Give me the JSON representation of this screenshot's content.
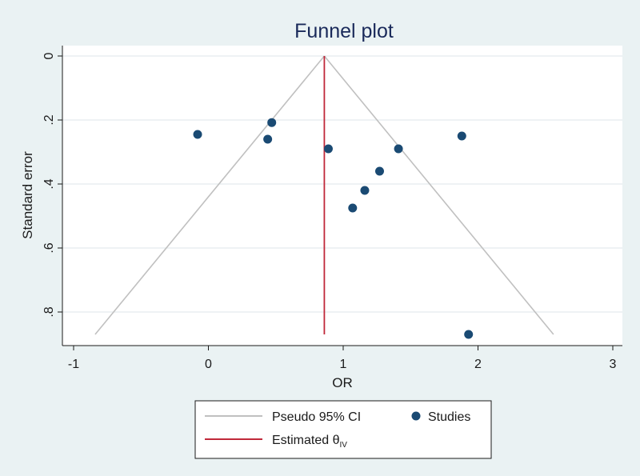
{
  "chart_data": {
    "type": "scatter",
    "title": "Funnel plot",
    "xlabel": "OR",
    "ylabel": "Standard error",
    "xlim": [
      -1.1,
      3.05
    ],
    "ylim": [
      0,
      0.9
    ],
    "y_reversed": true,
    "x_ticks": [
      -1,
      0,
      1,
      2,
      3
    ],
    "x_tick_labels": [
      "-1",
      "0",
      "1",
      "2",
      "3"
    ],
    "y_ticks": [
      0,
      0.2,
      0.4,
      0.6,
      0.8
    ],
    "y_tick_labels": [
      "0",
      ".2",
      ".4",
      ".6",
      ".8"
    ],
    "grid": true,
    "legend_position": "bottom",
    "colors": {
      "studies": "#1a4a73",
      "ci": "#c0c0c0",
      "estimate": "#c0283a",
      "grid": "#e4ebee",
      "plot_bg": "#ffffff",
      "page_bg": "#eaf2f3"
    },
    "studies": [
      {
        "x": -0.08,
        "y": 0.245
      },
      {
        "x": 0.47,
        "y": 0.208
      },
      {
        "x": 0.44,
        "y": 0.26
      },
      {
        "x": 0.89,
        "y": 0.29
      },
      {
        "x": 1.41,
        "y": 0.29
      },
      {
        "x": 1.88,
        "y": 0.25
      },
      {
        "x": 1.27,
        "y": 0.36
      },
      {
        "x": 1.16,
        "y": 0.42
      },
      {
        "x": 1.07,
        "y": 0.475
      },
      {
        "x": 1.93,
        "y": 0.87
      }
    ],
    "estimate": {
      "x": 0.86,
      "se_max": 0.87
    },
    "pseudo_ci": {
      "apex": {
        "x": 0.86,
        "y": 0
      },
      "left_base": {
        "x": -0.84,
        "y": 0.87
      },
      "right_base": {
        "x": 2.56,
        "y": 0.87
      }
    },
    "legend": [
      {
        "key": "ci",
        "label": "Pseudo 95% CI",
        "marker": "line"
      },
      {
        "key": "studies",
        "label": "Studies",
        "marker": "dot"
      },
      {
        "key": "estimate",
        "label_main": "Estimated θ",
        "label_sub": "IV",
        "marker": "line"
      }
    ]
  }
}
